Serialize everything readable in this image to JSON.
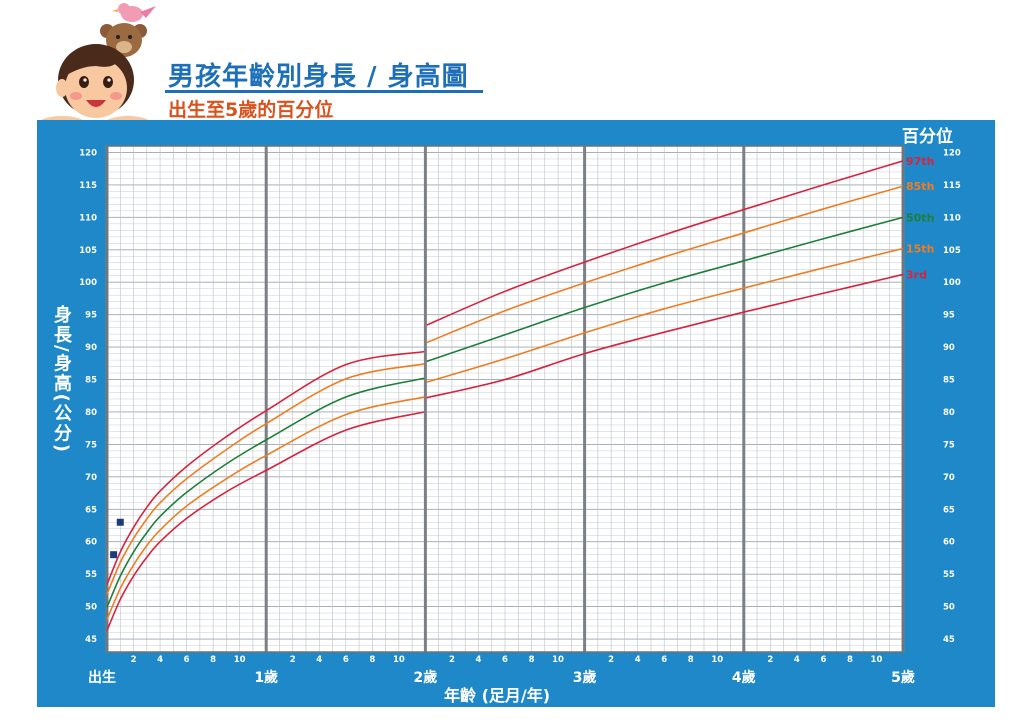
{
  "header": {
    "title": "男孩年齡別身長 / 身高圖",
    "subtitle": "出生至5歲的百分位"
  },
  "chart_data": {
    "type": "line",
    "title": "男孩年齡別身長 / 身高圖",
    "subtitle": "出生至5歲的百分位",
    "xlabel": "年齡 (足月/年)",
    "ylabel": "身長/身高(公分)",
    "percentile_header": "百分位",
    "xlim": [
      0,
      60
    ],
    "ylim": [
      43,
      121
    ],
    "y_ticks": [
      45,
      50,
      55,
      60,
      65,
      70,
      75,
      80,
      85,
      90,
      95,
      100,
      105,
      110,
      115,
      120
    ],
    "x_major_labels": [
      {
        "month": 0,
        "label": "出生"
      },
      {
        "month": 12,
        "label": "1歲"
      },
      {
        "month": 24,
        "label": "2歲"
      },
      {
        "month": 36,
        "label": "3歲"
      },
      {
        "month": 48,
        "label": "4歲"
      },
      {
        "month": 60,
        "label": "5歲"
      }
    ],
    "x_minor_labels": [
      "2",
      "4",
      "6",
      "8",
      "10"
    ],
    "grid": true,
    "series_x": [
      0,
      1,
      2,
      3,
      4,
      6,
      9,
      12,
      18,
      24,
      30,
      36,
      42,
      48,
      54,
      60
    ],
    "series": [
      {
        "name": "97th",
        "color": "#d6243f",
        "values": [
          53.4,
          58.4,
          62.2,
          65.3,
          67.8,
          71.6,
          76.2,
          80.2,
          87.3,
          93.3,
          98.6,
          103.1,
          107.3,
          111.2,
          115.0,
          118.7
        ],
        "break": [
          23.9,
          89.3,
          24.1,
          93.4
        ]
      },
      {
        "name": "85th",
        "color": "#ee7d22",
        "values": [
          51.9,
          56.8,
          60.5,
          63.5,
          66.0,
          69.7,
          74.2,
          78.2,
          85.1,
          90.6,
          95.6,
          99.9,
          103.9,
          107.6,
          111.3,
          114.8
        ],
        "break": [
          23.9,
          87.4,
          24.1,
          90.7
        ]
      },
      {
        "name": "50th",
        "color": "#1f7f3a",
        "values": [
          49.9,
          54.7,
          58.4,
          61.4,
          63.9,
          67.6,
          72.0,
          75.7,
          82.3,
          87.1,
          91.9,
          96.1,
          99.9,
          103.3,
          106.7,
          110.0
        ],
        "break": [
          23.9,
          85.2,
          24.1,
          87.8
        ]
      },
      {
        "name": "15th",
        "color": "#ee7d22",
        "values": [
          48.0,
          52.8,
          56.4,
          59.4,
          61.8,
          65.5,
          69.7,
          73.3,
          79.6,
          83.6,
          88.2,
          92.2,
          95.9,
          99.1,
          102.2,
          105.2
        ],
        "break": [
          23.9,
          82.3,
          24.1,
          84.6
        ]
      },
      {
        "name": "3rd",
        "color": "#d6243f",
        "values": [
          46.3,
          51.1,
          54.7,
          57.6,
          60.0,
          63.6,
          67.7,
          71.0,
          77.2,
          81.4,
          85.0,
          89.0,
          92.3,
          95.4,
          98.3,
          101.2
        ],
        "break": [
          23.9,
          80.0,
          24.1,
          82.2
        ]
      }
    ],
    "data_points": [
      {
        "x": 0.5,
        "y": 58
      },
      {
        "x": 1.0,
        "y": 63
      }
    ]
  }
}
